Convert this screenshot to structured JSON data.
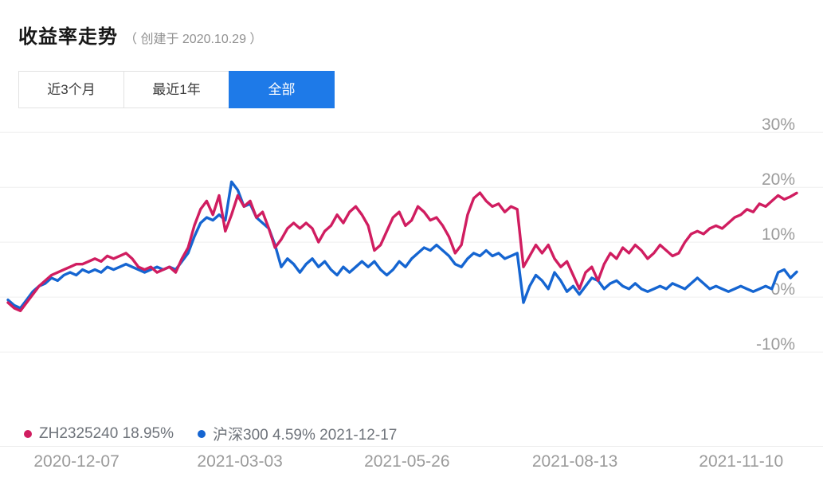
{
  "header": {
    "title": "收益率走势",
    "subtitle": "（ 创建于 2020.10.29 ）"
  },
  "tabs": [
    {
      "label": "近3个月",
      "active": false
    },
    {
      "label": "最近1年",
      "active": false
    },
    {
      "label": "全部",
      "active": true
    }
  ],
  "legend": [
    {
      "label": "ZH2325240 18.95%",
      "color": "#d01d60"
    },
    {
      "label": "沪深300 4.59% 2021-12-17",
      "color": "#1565d1"
    }
  ],
  "colors": {
    "active_tab": "#1e7ae8",
    "portfolio_line": "#d01d60",
    "benchmark_line": "#1565d1",
    "gridline": "#efefef",
    "axis_text": "#9b9b9b"
  },
  "chart_data": {
    "type": "line",
    "title": "收益率走势",
    "x_tick_labels": [
      "2020-12-07",
      "2021-03-03",
      "2021-05-26",
      "2021-08-13",
      "2021-11-10"
    ],
    "y_ticks": [
      30,
      20,
      10,
      0,
      -10
    ],
    "y_tick_suffix": "%",
    "ylim": [
      -27.1,
      33.8
    ],
    "grid": true,
    "legend_position": "bottom-left",
    "series": [
      {
        "id": "portfolio",
        "name": "ZH2325240",
        "current_value": "18.95%",
        "color": "#d01d60",
        "values": [
          -1,
          -2,
          -2.5,
          -1,
          0.5,
          2,
          3,
          4,
          4.5,
          5,
          5.5,
          6,
          6,
          6.5,
          7,
          6.5,
          7.5,
          7,
          7.5,
          8,
          7,
          5.5,
          5,
          5.5,
          4.5,
          5,
          5.5,
          4.5,
          7,
          9,
          13,
          16,
          17.5,
          15,
          18.5,
          12,
          15,
          18.5,
          16.5,
          17.5,
          14.5,
          15.5,
          12.5,
          9,
          10.5,
          12.5,
          13.5,
          12.5,
          13.5,
          12.5,
          10,
          12,
          13,
          15,
          13.5,
          15.5,
          16.5,
          15,
          13,
          8.5,
          9.5,
          12,
          14.5,
          15.5,
          13,
          14,
          16.5,
          15.5,
          14,
          14.5,
          13,
          11,
          8,
          9.5,
          15,
          18,
          19,
          17.5,
          16.5,
          17,
          15.5,
          16.5,
          16,
          5.5,
          7.5,
          9.5,
          8,
          9.5,
          7,
          5.5,
          6.5,
          4,
          1.5,
          4.5,
          5.5,
          3,
          6,
          8,
          7,
          9,
          8,
          9.5,
          8.5,
          7,
          8,
          9.5,
          8.5,
          7.5,
          8,
          10,
          11.5,
          12,
          11.5,
          12.5,
          13,
          12.5,
          13.5,
          14.5,
          15,
          16,
          15.5,
          17,
          16.5,
          17.5,
          18.5,
          17.8,
          18.3,
          18.95
        ]
      },
      {
        "id": "benchmark",
        "name": "沪深300",
        "current_value": "4.59%",
        "as_of_date": "2021-12-17",
        "color": "#1565d1",
        "values": [
          -0.5,
          -1.5,
          -2,
          -0.5,
          1,
          2,
          2.5,
          3.5,
          3,
          4,
          4.5,
          4,
          5,
          4.5,
          5,
          4.5,
          5.5,
          5,
          5.5,
          6,
          5.5,
          5,
          4.5,
          5,
          5.5,
          5,
          5.5,
          5,
          6.5,
          8,
          11,
          13.5,
          14.5,
          14,
          15,
          14,
          21,
          19.5,
          16.5,
          17,
          14.5,
          13.5,
          12.5,
          9.5,
          5.5,
          7,
          6,
          4.5,
          6,
          7,
          5.5,
          6.5,
          5,
          4,
          5.5,
          4.5,
          5.5,
          6.5,
          5.5,
          6.5,
          5,
          4,
          5,
          6.5,
          5.5,
          7,
          8,
          9,
          8.5,
          9.5,
          8.5,
          7.5,
          6,
          5.5,
          7,
          8,
          7.5,
          8.5,
          7.5,
          8,
          7,
          7.5,
          8,
          -1,
          2,
          4,
          3,
          1.5,
          4.5,
          3,
          1,
          2,
          0.5,
          2,
          3.5,
          3,
          1.5,
          2.5,
          3,
          2,
          1.5,
          2.5,
          1.5,
          1,
          1.5,
          2,
          1.5,
          2.5,
          2,
          1.5,
          2.5,
          3.5,
          2.5,
          1.5,
          2,
          1.5,
          1,
          1.5,
          2,
          1.5,
          1,
          1.5,
          2,
          1.5,
          4.5,
          5,
          3.5,
          4.59
        ]
      }
    ]
  }
}
